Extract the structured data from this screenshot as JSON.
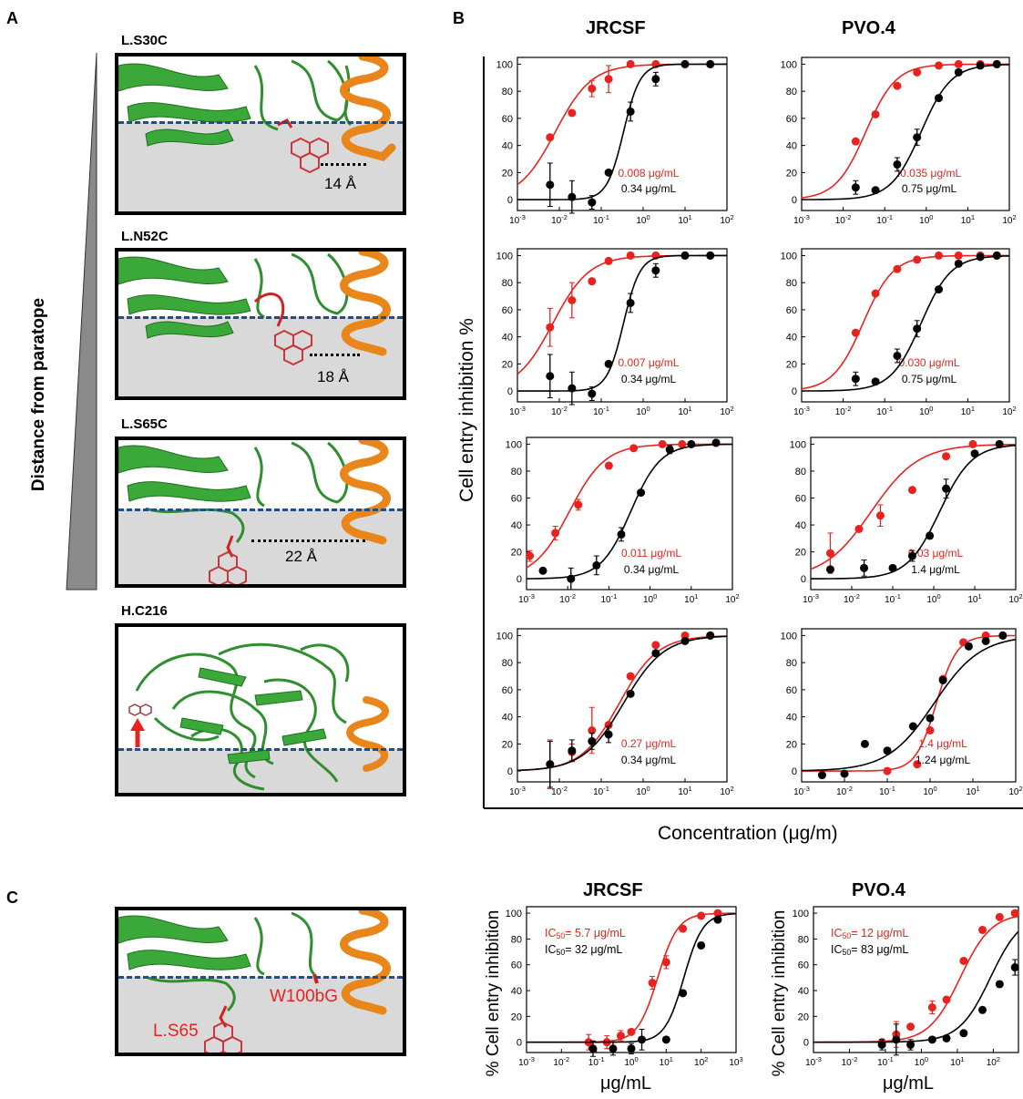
{
  "panel_labels": {
    "A": "A",
    "B": "B",
    "C": "C"
  },
  "panel_a": {
    "axis_label": "Distance from paratope",
    "structures": [
      {
        "name": "L.S30C",
        "distance": "14 Å"
      },
      {
        "name": "L.N52C",
        "distance": "18 Å"
      },
      {
        "name": "L.S65C",
        "distance": "22 Å"
      },
      {
        "name": "H.C216",
        "distance": ""
      }
    ]
  },
  "panel_b": {
    "column_titles": [
      "JRCSF",
      "PVO.4"
    ],
    "ylabel": "Cell entry inhibition %",
    "xlabel": "Concentration (μg/m)",
    "colors": {
      "red": "#e8231f",
      "black": "#000000"
    }
  },
  "panel_c": {
    "structure_labels": {
      "site1": "L.S65",
      "site2": "W100bG"
    },
    "ylabel": "% Cell entry inhibition",
    "xlabel": "μg/mL"
  },
  "chart_data": [
    {
      "id": "b-jrcsf-1",
      "type": "scatter",
      "title": "JRCSF",
      "xscale": "log",
      "xlim": [
        0.001,
        100
      ],
      "ylim": [
        0,
        100
      ],
      "yticks": [
        0,
        20,
        40,
        60,
        80,
        100
      ],
      "xticks": [
        "10-3",
        "10-2",
        "10-1",
        "100",
        "101",
        "102"
      ],
      "series": [
        {
          "color": "red",
          "label": "0.008 μg/mL",
          "x": [
            0.006,
            0.02,
            0.06,
            0.15,
            0.5,
            2,
            10,
            40
          ],
          "y": [
            46,
            64,
            82,
            89,
            100,
            100,
            100,
            100
          ],
          "err": [
            0,
            0,
            6,
            10,
            0,
            0,
            0,
            0
          ],
          "ic50": 0.008,
          "hill": 1.0
        },
        {
          "color": "black",
          "label": "0.34 μg/mL",
          "x": [
            0.006,
            0.02,
            0.06,
            0.15,
            0.5,
            2,
            10,
            40
          ],
          "y": [
            11,
            2,
            -2,
            20,
            65,
            89,
            100,
            100
          ],
          "err": [
            16,
            12,
            5,
            0,
            7,
            5,
            0,
            0
          ],
          "ic50": 0.34,
          "hill": 2.2
        }
      ]
    },
    {
      "id": "b-pvo4-1",
      "type": "scatter",
      "title": "PVO.4",
      "xscale": "log",
      "xlim": [
        0.001,
        100
      ],
      "ylim": [
        0,
        100
      ],
      "yticks": [
        0,
        20,
        40,
        60,
        80,
        100
      ],
      "xticks": [
        "10-3",
        "10-2",
        "10-1",
        "100",
        "101",
        "102"
      ],
      "series": [
        {
          "color": "red",
          "label": "I0.035 μg/mL",
          "x": [
            0.02,
            0.06,
            0.2,
            0.6,
            2,
            6,
            20,
            50
          ],
          "y": [
            43,
            63,
            84,
            94,
            99,
            100,
            100,
            100
          ],
          "err": [
            0,
            0,
            0,
            0,
            0,
            0,
            0,
            0
          ],
          "ic50": 0.035,
          "hill": 1.2
        },
        {
          "color": "black",
          "label": "0.75 μg/mL",
          "x": [
            0.02,
            0.06,
            0.2,
            0.6,
            2,
            6,
            20,
            50
          ],
          "y": [
            9,
            7,
            26,
            46,
            75,
            94,
            99,
            100
          ],
          "err": [
            5,
            0,
            5,
            6,
            0,
            0,
            0,
            0
          ],
          "ic50": 0.75,
          "hill": 1.2
        }
      ]
    },
    {
      "id": "b-jrcsf-2",
      "type": "scatter",
      "xscale": "log",
      "xlim": [
        0.001,
        100
      ],
      "ylim": [
        0,
        100
      ],
      "yticks": [
        0,
        20,
        40,
        60,
        80,
        100
      ],
      "xticks": [
        "10-3",
        "10-2",
        "10-1",
        "100",
        "101",
        "102"
      ],
      "series": [
        {
          "color": "red",
          "label": "0.007 μg/mL",
          "x": [
            0.006,
            0.02,
            0.06,
            0.15,
            0.5,
            2,
            10,
            40
          ],
          "y": [
            47,
            67,
            81,
            96,
            100,
            100,
            100,
            100
          ],
          "err": [
            14,
            13,
            0,
            0,
            0,
            0,
            0,
            0
          ],
          "ic50": 0.007,
          "hill": 1.0
        },
        {
          "color": "black",
          "label": "0.34 μg/mL",
          "x": [
            0.006,
            0.02,
            0.06,
            0.15,
            0.5,
            2,
            10,
            40
          ],
          "y": [
            11,
            2,
            -2,
            20,
            65,
            89,
            100,
            100
          ],
          "err": [
            16,
            12,
            5,
            0,
            7,
            5,
            0,
            0
          ],
          "ic50": 0.34,
          "hill": 2.2
        }
      ]
    },
    {
      "id": "b-pvo4-2",
      "type": "scatter",
      "xscale": "log",
      "xlim": [
        0.001,
        100
      ],
      "ylim": [
        0,
        100
      ],
      "yticks": [
        0,
        20,
        40,
        60,
        80,
        100
      ],
      "xticks": [
        "10-3",
        "10-2",
        "10-1",
        "100",
        "101",
        "102"
      ],
      "series": [
        {
          "color": "red",
          "label": "0.030 μg/mL",
          "x": [
            0.02,
            0.06,
            0.2,
            0.6,
            2,
            6,
            20,
            50
          ],
          "y": [
            43,
            72,
            90,
            97,
            100,
            100,
            100,
            100
          ],
          "err": [
            0,
            0,
            0,
            0,
            0,
            0,
            0,
            0
          ],
          "ic50": 0.03,
          "hill": 1.2
        },
        {
          "color": "black",
          "label": "0.75 μg/mL",
          "x": [
            0.02,
            0.06,
            0.2,
            0.6,
            2,
            6,
            20,
            50
          ],
          "y": [
            9,
            7,
            26,
            46,
            75,
            94,
            99,
            100
          ],
          "err": [
            5,
            0,
            5,
            6,
            0,
            0,
            0,
            0
          ],
          "ic50": 0.75,
          "hill": 1.2
        }
      ]
    },
    {
      "id": "b-jrcsf-3",
      "type": "scatter",
      "xscale": "log",
      "xlim": [
        0.001,
        100
      ],
      "ylim": [
        0,
        100
      ],
      "yticks": [
        0,
        20,
        40,
        60,
        80,
        100
      ],
      "xticks": [
        "10-3",
        "10-2",
        "10-1",
        "100",
        "101",
        "102"
      ],
      "series": [
        {
          "color": "red",
          "label": "0.011 μg/mL",
          "x": [
            0.0012,
            0.005,
            0.018,
            0.1,
            0.4,
            2,
            6,
            40
          ],
          "y": [
            17,
            34,
            55,
            84,
            97,
            100,
            100,
            101
          ],
          "err": [
            4,
            5,
            4,
            0,
            0,
            0,
            0,
            0
          ],
          "ic50": 0.011,
          "hill": 1.0
        },
        {
          "color": "black",
          "label": "0.34 μg/mL",
          "x": [
            0.0025,
            0.012,
            0.05,
            0.2,
            0.6,
            3,
            10,
            40
          ],
          "y": [
            6,
            0,
            10,
            33,
            64,
            96,
            100,
            101
          ],
          "err": [
            0,
            8,
            7,
            5,
            0,
            3,
            0,
            0
          ],
          "ic50": 0.34,
          "hill": 1.2
        }
      ]
    },
    {
      "id": "b-pvo4-3",
      "type": "scatter",
      "xscale": "log",
      "xlim": [
        0.001,
        100
      ],
      "ylim": [
        0,
        100
      ],
      "yticks": [
        0,
        20,
        40,
        60,
        80,
        100
      ],
      "xticks": [
        "10-3",
        "10-2",
        "10-1",
        "100",
        "101",
        "102"
      ],
      "series": [
        {
          "color": "red",
          "label": "0.03 μg/mL",
          "x": [
            0.003,
            0.015,
            0.05,
            0.3,
            2,
            9,
            40
          ],
          "y": [
            19,
            37,
            47,
            66,
            91,
            100,
            100
          ],
          "err": [
            15,
            0,
            8,
            0,
            0,
            0,
            0
          ],
          "ic50": 0.03,
          "hill": 0.75
        },
        {
          "color": "black",
          "label": "1.4 μg/mL",
          "x": [
            0.003,
            0.02,
            0.1,
            0.3,
            0.8,
            2,
            10,
            40
          ],
          "y": [
            7,
            8,
            8,
            17,
            32,
            67,
            93,
            100
          ],
          "err": [
            0,
            6,
            0,
            4,
            0,
            7,
            0,
            0
          ],
          "ic50": 1.4,
          "hill": 1.1
        }
      ]
    },
    {
      "id": "b-jrcsf-4",
      "type": "scatter",
      "xscale": "log",
      "xlim": [
        0.001,
        100
      ],
      "ylim": [
        0,
        100
      ],
      "yticks": [
        0,
        20,
        40,
        60,
        80,
        100
      ],
      "xticks": [
        "10-3",
        "10-2",
        "10-1",
        "100",
        "101",
        "102"
      ],
      "series": [
        {
          "color": "red",
          "label": "0.27 μg/mL",
          "x": [
            0.006,
            0.02,
            0.06,
            0.15,
            0.5,
            2,
            10,
            40
          ],
          "y": [
            5,
            14,
            30,
            34,
            70,
            93,
            100,
            100
          ],
          "err": [
            18,
            6,
            17,
            0,
            0,
            0,
            0,
            0
          ],
          "ic50": 0.27,
          "hill": 0.95
        },
        {
          "color": "black",
          "label": "0.34 μg/mL",
          "x": [
            0.006,
            0.02,
            0.06,
            0.15,
            0.5,
            2,
            10,
            40
          ],
          "y": [
            5,
            15,
            22,
            27,
            57,
            87,
            96,
            100
          ],
          "err": [
            17,
            8,
            6,
            6,
            0,
            0,
            0,
            0
          ],
          "ic50": 0.34,
          "hill": 0.9
        }
      ]
    },
    {
      "id": "b-pvo4-4",
      "type": "scatter",
      "xscale": "log",
      "xlim": [
        0.001,
        100
      ],
      "ylim": [
        0,
        100
      ],
      "yticks": [
        0,
        20,
        40,
        60,
        80,
        100
      ],
      "xticks": [
        "10-3",
        "10-2",
        "10-1",
        "100",
        "101",
        "102"
      ],
      "series": [
        {
          "color": "red",
          "label": "1.4 μg/mL",
          "x": [
            0.1,
            0.5,
            1,
            2,
            6,
            20,
            50
          ],
          "y": [
            0,
            5,
            30,
            68,
            95,
            100,
            100
          ],
          "err": [
            0,
            0,
            0,
            0,
            0,
            0,
            0
          ],
          "ic50": 1.4,
          "hill": 1.8
        },
        {
          "color": "black",
          "label": "1.24 μg/mL",
          "x": [
            0.003,
            0.01,
            0.03,
            0.1,
            0.4,
            1,
            2,
            8,
            20,
            50
          ],
          "y": [
            -3,
            -2,
            20,
            15,
            33,
            39,
            67,
            92,
            96,
            100
          ],
          "err": [
            0,
            0,
            0,
            0,
            0,
            0,
            0,
            0,
            0,
            0
          ],
          "ic50": 1.24,
          "hill": 0.8
        }
      ]
    },
    {
      "id": "c-jrcsf",
      "type": "scatter",
      "title": "JRCSF",
      "xscale": "log",
      "xlim": [
        0.001,
        1000
      ],
      "ylim": [
        0,
        100
      ],
      "yticks": [
        0,
        20,
        40,
        60,
        80,
        100
      ],
      "xticks": [
        "10-3",
        "10-2",
        "10-1",
        "100",
        "101",
        "102",
        "103"
      ],
      "series": [
        {
          "color": "red",
          "label": "IC50= 5.7 μg/mL",
          "x": [
            0.06,
            0.2,
            0.5,
            1,
            4,
            10,
            30,
            100,
            300
          ],
          "y": [
            0,
            0,
            5,
            8,
            46,
            62,
            88,
            98,
            100
          ],
          "err": [
            6,
            5,
            4,
            0,
            5,
            5,
            0,
            0,
            0
          ],
          "ic50": 5.7,
          "hill": 1.5
        },
        {
          "color": "black",
          "label": "IC50= 32 μg/mL",
          "x": [
            0.08,
            0.3,
            1,
            2,
            10,
            30,
            100,
            300
          ],
          "y": [
            -5,
            -5,
            -5,
            2,
            2,
            38,
            75,
            95
          ],
          "err": [
            6,
            5,
            4,
            8,
            0,
            0,
            0,
            0
          ],
          "ic50": 32,
          "hill": 1.6
        }
      ]
    },
    {
      "id": "c-pvo4",
      "type": "scatter",
      "title": "PVO.4",
      "xscale": "log",
      "xlim": [
        0.001,
        500
      ],
      "ylim": [
        0,
        100
      ],
      "yticks": [
        0,
        20,
        40,
        60,
        80,
        100
      ],
      "xticks": [
        "10-3",
        "10-2",
        "10-1",
        "100",
        "101",
        "102",
        "10"
      ],
      "series": [
        {
          "color": "red",
          "label": "IC50= 12 μg/mL",
          "x": [
            0.08,
            0.2,
            0.5,
            2,
            5,
            15,
            50,
            150,
            400
          ],
          "y": [
            0,
            6,
            12,
            27,
            33,
            63,
            87,
            97,
            100
          ],
          "err": [
            0,
            10,
            0,
            5,
            0,
            0,
            0,
            0,
            0
          ],
          "ic50": 12,
          "hill": 1.0
        },
        {
          "color": "black",
          "label": "IC50= 83 μg/mL",
          "x": [
            0.08,
            0.2,
            0.5,
            2,
            5,
            15,
            50,
            150,
            400
          ],
          "y": [
            -2,
            2,
            -2,
            2,
            3,
            7,
            25,
            45,
            58
          ],
          "err": [
            4,
            12,
            4,
            0,
            0,
            0,
            0,
            0,
            6
          ],
          "ic50": 83,
          "hill": 1.0
        }
      ]
    }
  ]
}
